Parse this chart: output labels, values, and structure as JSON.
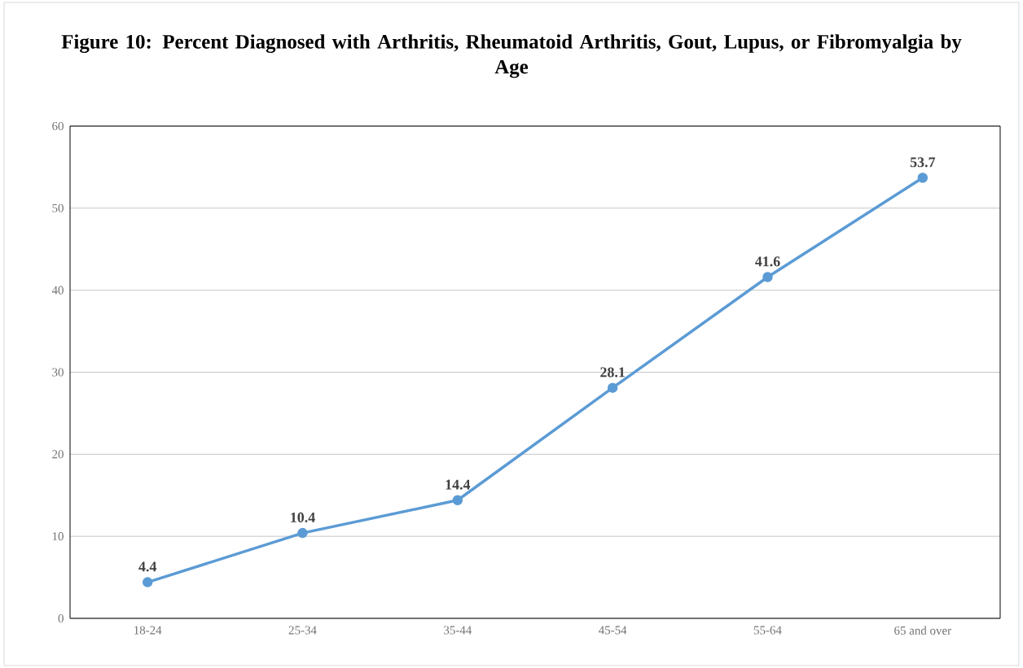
{
  "chart_data": {
    "type": "line",
    "title": "Figure 10: Percent Diagnosed with Arthritis, Rheumatoid Arthritis, Gout, Lupus, or Fibromyalgia by Age",
    "categories": [
      "18-24",
      "25-34",
      "35-44",
      "45-54",
      "55-64",
      "65 and over"
    ],
    "series": [
      {
        "color": "#5b9bd5",
        "values": [
          4.4,
          10.4,
          14.4,
          28.1,
          41.6,
          53.7
        ]
      }
    ],
    "ylim": [
      0,
      60
    ],
    "yticks": [
      0,
      10,
      20,
      30,
      40,
      50,
      60
    ],
    "grid": "y",
    "marker": "circle",
    "line_style": "solid",
    "data_labels": true
  }
}
